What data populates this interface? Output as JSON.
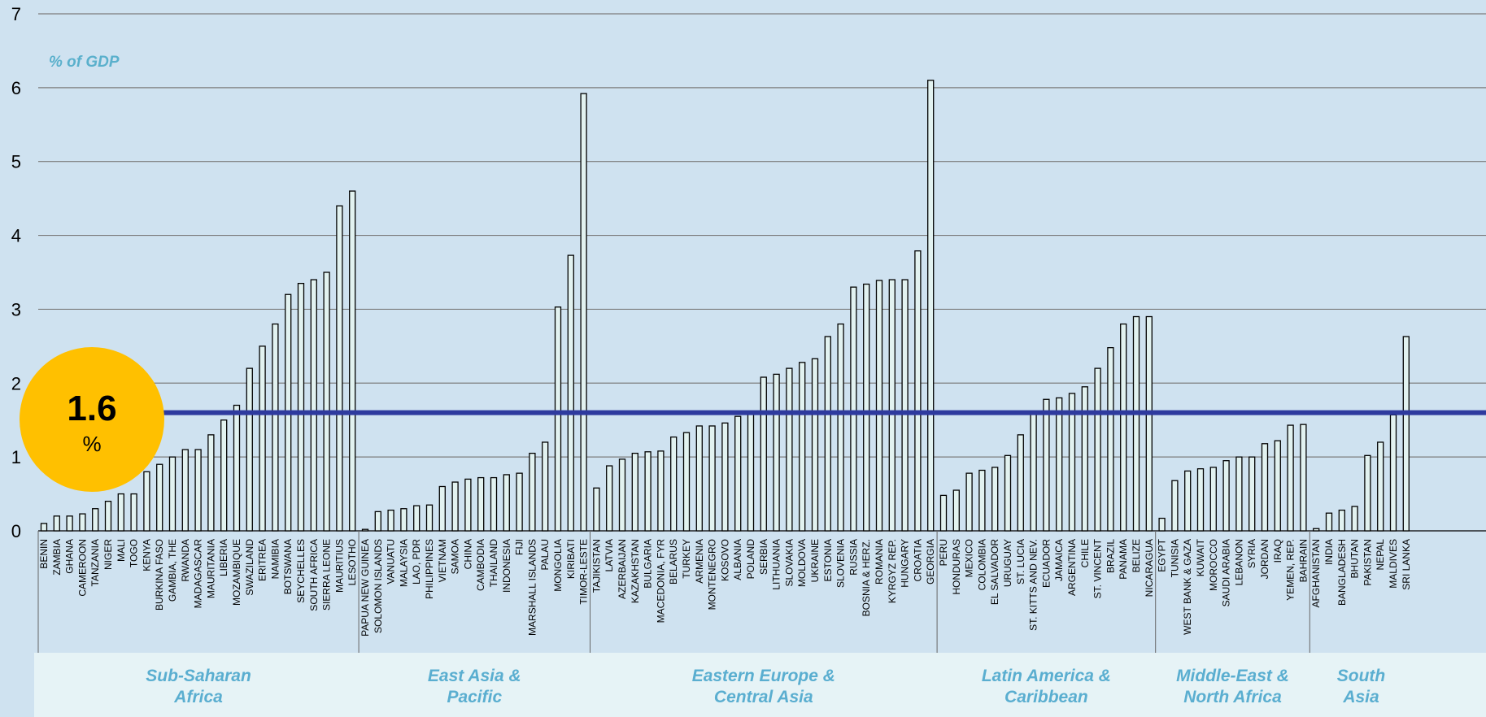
{
  "chart_data": {
    "type": "bar",
    "unit_label": "% of GDP",
    "ylim": [
      0,
      7
    ],
    "yticks": [
      "0",
      "1",
      "2",
      "3",
      "4",
      "5",
      "6",
      "7"
    ],
    "grid": true,
    "reference_line": {
      "value": 1.6
    },
    "badge": {
      "value": "1.6",
      "unit": "%",
      "color": "#ffc000"
    },
    "colors": {
      "line": "#2e3a9e",
      "bar_fill": "#e2f2f0",
      "bar_stroke": "#000000",
      "region_label": "#5aaed0"
    },
    "groups": [
      {
        "name_lines": [
          "Sub-Saharan",
          "Africa"
        ],
        "categories": [
          "BENIN",
          "ZAMBIA",
          "GHANA",
          "CAMEROON",
          "TANZANIA",
          "NIGER",
          "MALI",
          "TOGO",
          "KENYA",
          "BURKINA FASO",
          "GAMBIA, THE",
          "RWANDA",
          "MADAGASCAR",
          "MAURITANIA",
          "LIBERIA",
          "MOZAMBIQUE",
          "SWAZILAND",
          "ERITREA",
          "NAMIBIA",
          "BOTSWANA",
          "SEYCHELLES",
          "SOUTH AFRICA",
          "SIERRA LEONE",
          "MAURITIUS",
          "LESOTHO"
        ],
        "values": [
          0.1,
          0.2,
          0.2,
          0.23,
          0.3,
          0.4,
          0.5,
          0.5,
          0.8,
          0.9,
          1.0,
          1.1,
          1.1,
          1.3,
          1.5,
          1.7,
          2.2,
          2.5,
          2.8,
          3.2,
          3.35,
          3.4,
          3.5,
          4.4,
          4.6
        ]
      },
      {
        "name_lines": [
          "East Asia &",
          "Pacific"
        ],
        "categories": [
          "PAPUA NEW GUINEA",
          "SOLOMON ISLANDS",
          "VANUATU",
          "MALAYSIA",
          "LAO, PDR",
          "PHILIPPINES",
          "VIETNAM",
          "SAMOA",
          "CHINA",
          "CAMBODIA",
          "THAILAND",
          "INDONESIA",
          "FIJI",
          "MARSHALL ISLANDS",
          "PALAU",
          "MONGOLIA",
          "KIRIBATI",
          "TIMOR-LESTE"
        ],
        "values": [
          0.02,
          0.26,
          0.28,
          0.3,
          0.34,
          0.35,
          0.6,
          0.66,
          0.7,
          0.72,
          0.72,
          0.76,
          0.78,
          1.05,
          1.2,
          3.03,
          3.73,
          5.92
        ]
      },
      {
        "name_lines": [
          "Eastern Europe &",
          "Central Asia"
        ],
        "categories": [
          "TAJIKISTAN",
          "LATVIA",
          "AZERBAIJAN",
          "KAZAKHSTAN",
          "BULGARIA",
          "MACEDONIA, FYR",
          "BELARUS",
          "TURKEY",
          "ARMENIA",
          "MONTENEGRO",
          "KOSOVO",
          "ALBANIA",
          "POLAND",
          "SERBIA",
          "LITHUANIA",
          "SLOVAKIA",
          "MOLDOVA",
          "UKRAINE",
          "ESTONIA",
          "SLOVENIA",
          "RUSSIA",
          "BOSNIA & HERZ.",
          "ROMANIA",
          "KYRGYZ REP.",
          "HUNGARY",
          "CROATIA",
          "GEORGIA"
        ],
        "values": [
          0.58,
          0.88,
          0.97,
          1.05,
          1.07,
          1.08,
          1.27,
          1.33,
          1.42,
          1.42,
          1.46,
          1.55,
          1.58,
          2.08,
          2.12,
          2.2,
          2.28,
          2.33,
          2.63,
          2.8,
          3.3,
          3.34,
          3.39,
          3.4,
          3.4,
          3.79,
          6.1
        ]
      },
      {
        "name_lines": [
          "Latin America &",
          "Caribbean"
        ],
        "categories": [
          "PERU",
          "HONDURAS",
          "MEXICO",
          "COLOMBIA",
          "EL SALVADOR",
          "URUGUAY",
          "ST. LUCIA",
          "ST. KITTS AND NEV.",
          "ECUADOR",
          "JAMAICA",
          "ARGENTINA",
          "CHILE",
          "ST. VINCENT",
          "BRAZIL",
          "PANAMA",
          "BELIZE",
          "NICARAGUA"
        ],
        "values": [
          0.48,
          0.55,
          0.78,
          0.82,
          0.86,
          1.02,
          1.3,
          1.6,
          1.78,
          1.8,
          1.86,
          1.95,
          2.2,
          2.48,
          2.8,
          2.9,
          2.9
        ]
      },
      {
        "name_lines": [
          "Middle-East &",
          "North Africa"
        ],
        "categories": [
          "EGYPT",
          "TUNISIA",
          "WEST BANK & GAZA",
          "KUWAIT",
          "MOROCCO",
          "SAUDI ARABIA",
          "LEBANON",
          "SYRIA",
          "JORDAN",
          "IRAQ",
          "YEMEN, REP.",
          "BAHRAIN"
        ],
        "values": [
          0.17,
          0.68,
          0.81,
          0.84,
          0.86,
          0.95,
          1.0,
          1.0,
          1.18,
          1.22,
          1.43,
          1.44
        ]
      },
      {
        "name_lines": [
          "South",
          "Asia"
        ],
        "categories": [
          "AFGHANISTAN",
          "INDIA",
          "BANGLADESH",
          "BHUTAN",
          "PAKISTAN",
          "NEPAL",
          "MALDIVES",
          "SRI LANKA"
        ],
        "values": [
          0.03,
          0.24,
          0.28,
          0.33,
          1.02,
          1.2,
          1.57,
          2.63
        ]
      }
    ]
  }
}
